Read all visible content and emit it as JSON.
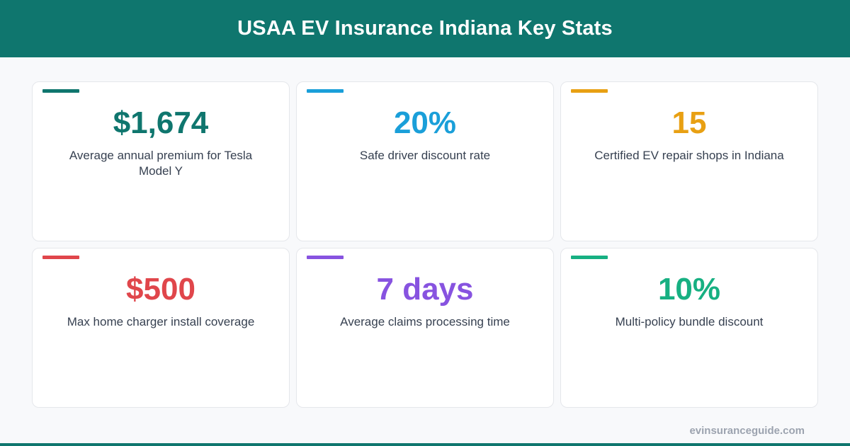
{
  "header": {
    "title": "USAA EV Insurance Indiana Key Stats"
  },
  "stats": [
    {
      "value": "$1,674",
      "label": "Average annual premium for Tesla Model Y",
      "color": "#0f766e"
    },
    {
      "value": "20%",
      "label": "Safe driver discount rate",
      "color": "#1a9fd9"
    },
    {
      "value": "15",
      "label": "Certified EV repair shops in Indiana",
      "color": "#e8a013"
    },
    {
      "value": "$500",
      "label": "Max home charger install coverage",
      "color": "#e0464b"
    },
    {
      "value": "7 days",
      "label": "Average claims processing time",
      "color": "#8753e0"
    },
    {
      "value": "10%",
      "label": "Multi-policy bundle discount",
      "color": "#17b082"
    }
  ],
  "footer": {
    "site": "evinsuranceguide.com"
  },
  "colors": {
    "header_bg": "#0f766e",
    "page_bg": "#f8f9fb"
  }
}
